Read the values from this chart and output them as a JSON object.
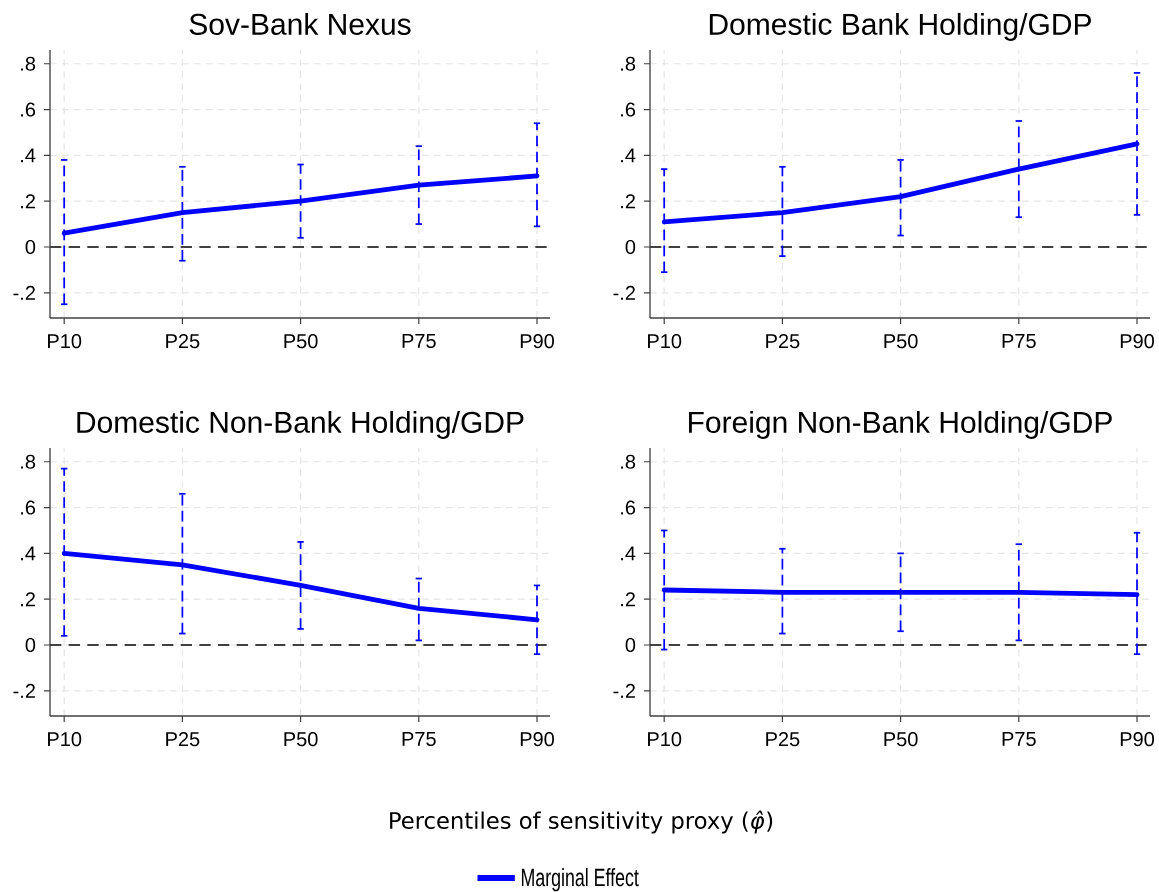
{
  "chart_data": [
    {
      "type": "line",
      "title": "Sov-Bank Nexus",
      "categories": [
        "P10",
        "P25",
        "P50",
        "P75",
        "P90"
      ],
      "series": [
        {
          "color": "#0000ff",
          "values": [
            0.06,
            0.15,
            0.2,
            0.27,
            0.31
          ],
          "errors": [
            [
              -0.25,
              0.38
            ],
            [
              -0.06,
              0.35
            ],
            [
              0.04,
              0.36
            ],
            [
              0.1,
              0.44
            ],
            [
              0.09,
              0.54
            ]
          ]
        }
      ],
      "ylim": [
        -0.31,
        0.86
      ],
      "yticks": [
        {
          "value": -0.2,
          "label": "-.2"
        },
        0,
        {
          "value": 0.2,
          "label": ".2"
        },
        {
          "value": 0.4,
          "label": ".4"
        },
        {
          "value": 0.6,
          "label": ".6"
        },
        {
          "value": 0.8,
          "label": ".8"
        }
      ],
      "grid": true,
      "ref_lines": [
        {
          "axis": "y",
          "value": 0,
          "color": "#404040",
          "line_style": "dashed"
        }
      ]
    },
    {
      "type": "line",
      "title": "Domestic Bank Holding/GDP",
      "categories": [
        "P10",
        "P25",
        "P50",
        "P75",
        "P90"
      ],
      "series": [
        {
          "color": "#0000ff",
          "values": [
            0.11,
            0.15,
            0.22,
            0.34,
            0.45
          ],
          "errors": [
            [
              -0.11,
              0.34
            ],
            [
              -0.04,
              0.35
            ],
            [
              0.05,
              0.38
            ],
            [
              0.13,
              0.55
            ],
            [
              0.14,
              0.76
            ]
          ]
        }
      ],
      "ylim": [
        -0.31,
        0.86
      ],
      "yticks": [
        {
          "value": -0.2,
          "label": "-.2"
        },
        0,
        {
          "value": 0.2,
          "label": ".2"
        },
        {
          "value": 0.4,
          "label": ".4"
        },
        {
          "value": 0.6,
          "label": ".6"
        },
        {
          "value": 0.8,
          "label": ".8"
        }
      ],
      "grid": true,
      "ref_lines": [
        {
          "axis": "y",
          "value": 0,
          "color": "#404040",
          "line_style": "dashed"
        }
      ]
    },
    {
      "type": "line",
      "title": "Domestic Non-Bank Holding/GDP",
      "xlabel": "Percentiles of sensitivity proxy (*φ̂*)",
      "categories": [
        "P10",
        "P25",
        "P50",
        "P75",
        "P90"
      ],
      "series": [
        {
          "name": "Marginal Effect",
          "color": "#0000ff",
          "values": [
            0.4,
            0.35,
            0.26,
            0.16,
            0.11
          ],
          "errors": [
            [
              0.04,
              0.77
            ],
            [
              0.05,
              0.66
            ],
            [
              0.07,
              0.45
            ],
            [
              0.02,
              0.29
            ],
            [
              -0.04,
              0.26
            ]
          ]
        }
      ],
      "ylim": [
        -0.31,
        0.86
      ],
      "yticks": [
        {
          "value": -0.2,
          "label": "-.2"
        },
        0,
        {
          "value": 0.2,
          "label": ".2"
        },
        {
          "value": 0.4,
          "label": ".4"
        },
        {
          "value": 0.6,
          "label": ".6"
        },
        {
          "value": 0.8,
          "label": ".8"
        }
      ],
      "grid": true,
      "legend": "bottom",
      "ref_lines": [
        {
          "axis": "y",
          "value": 0,
          "color": "#404040",
          "line_style": "dashed"
        }
      ]
    },
    {
      "type": "line",
      "title": "Foreign Non-Bank Holding/GDP",
      "categories": [
        "P10",
        "P25",
        "P50",
        "P75",
        "P90"
      ],
      "series": [
        {
          "color": "#0000ff",
          "values": [
            0.24,
            0.23,
            0.23,
            0.23,
            0.22
          ],
          "errors": [
            [
              -0.02,
              0.5
            ],
            [
              0.05,
              0.42
            ],
            [
              0.06,
              0.4
            ],
            [
              0.02,
              0.44
            ],
            [
              -0.04,
              0.49
            ]
          ]
        }
      ],
      "ylim": [
        -0.31,
        0.86
      ],
      "yticks": [
        {
          "value": -0.2,
          "label": "-.2"
        },
        0,
        {
          "value": 0.2,
          "label": ".2"
        },
        {
          "value": 0.4,
          "label": ".4"
        },
        {
          "value": 0.6,
          "label": ".6"
        },
        {
          "value": 0.8,
          "label": ".8"
        }
      ],
      "grid": true,
      "ref_lines": [
        {
          "axis": "y",
          "value": 0,
          "color": "#404040",
          "line_style": "dashed"
        }
      ]
    }
  ]
}
